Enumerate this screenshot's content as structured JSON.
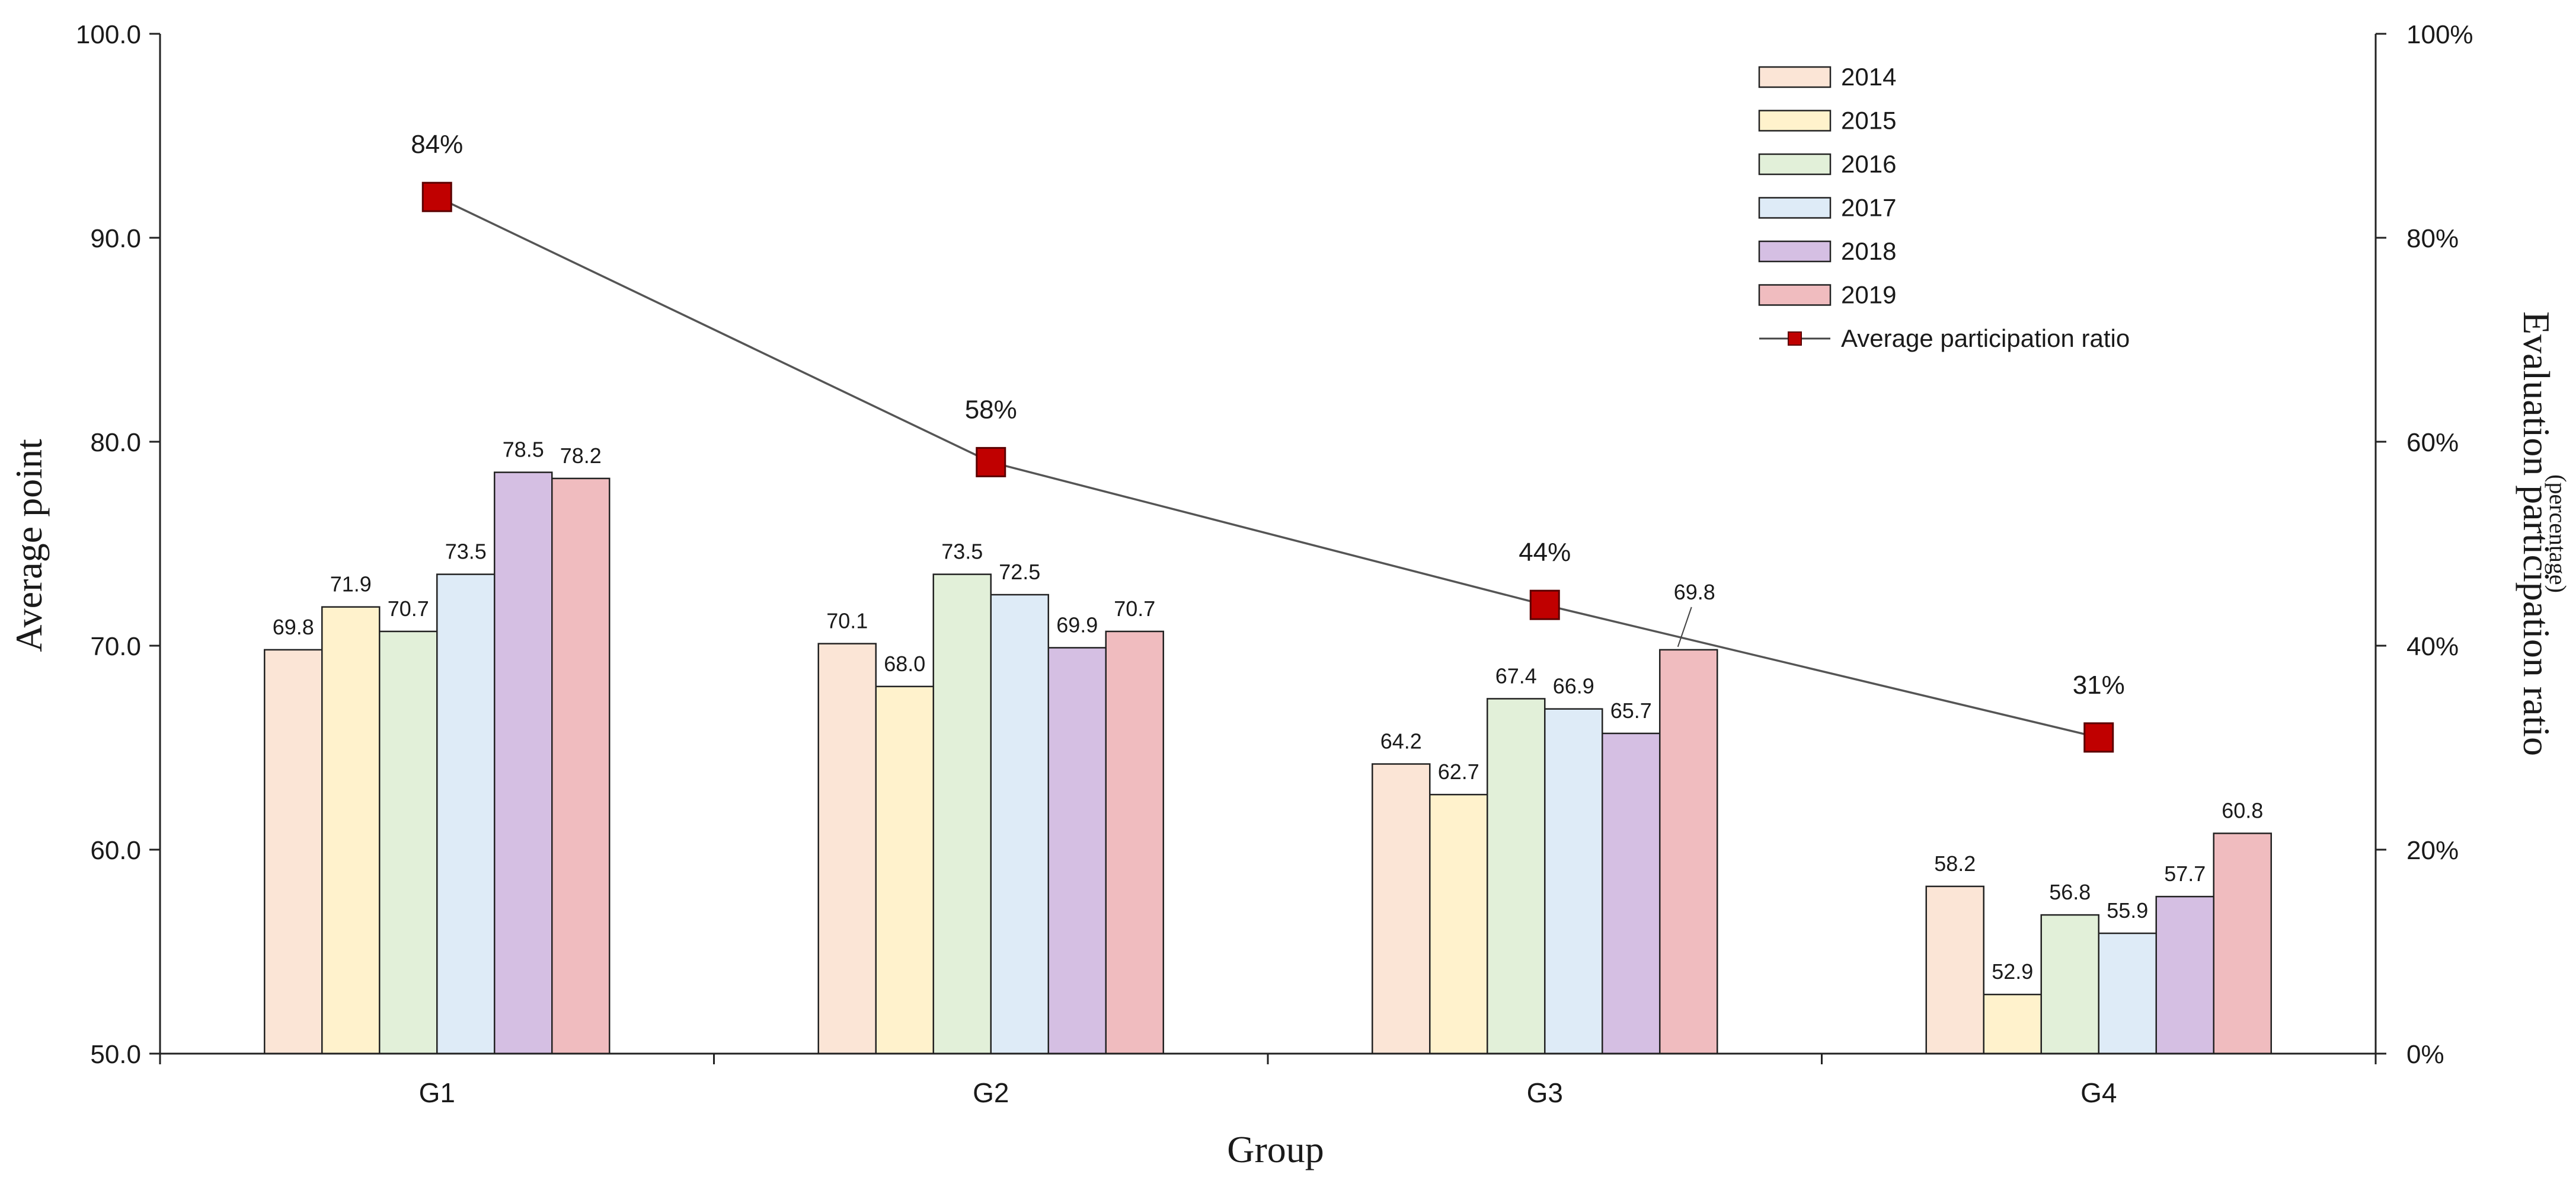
{
  "chart_data": {
    "type": "bar",
    "x_title": "Group",
    "y_left_title": "Average point",
    "y_right_title": "Evaluation participation ratio",
    "y_right_subtitle": "(percentage)",
    "categories": [
      "G1",
      "G2",
      "G3",
      "G4"
    ],
    "y_left": {
      "min": 50,
      "max": 100,
      "ticks": [
        50,
        60,
        70,
        80,
        90,
        100
      ],
      "tick_labels": [
        "50.0",
        "60.0",
        "70.0",
        "80.0",
        "90.0",
        "100.0"
      ]
    },
    "y_right": {
      "min": 0,
      "max": 100,
      "ticks": [
        0,
        20,
        40,
        60,
        80,
        100
      ],
      "tick_labels": [
        "0%",
        "20%",
        "40%",
        "60%",
        "80%",
        "100%"
      ]
    },
    "series": [
      {
        "name": "2014",
        "color": "#FBE5D6",
        "values": [
          69.8,
          70.1,
          64.2,
          58.2
        ],
        "labels": [
          "69.8",
          "70.1",
          "64.2",
          "58.2"
        ]
      },
      {
        "name": "2015",
        "color": "#FFF2CC",
        "values": [
          71.9,
          68.0,
          62.7,
          52.9
        ],
        "labels": [
          "71.9",
          "68.0",
          "62.7",
          "52.9"
        ]
      },
      {
        "name": "2016",
        "color": "#E2F0D9",
        "values": [
          70.7,
          73.5,
          67.4,
          56.8
        ],
        "labels": [
          "70.7",
          "73.5",
          "67.4",
          "56.8"
        ]
      },
      {
        "name": "2017",
        "color": "#DEEBF7",
        "values": [
          73.5,
          72.5,
          66.9,
          55.9
        ],
        "labels": [
          "73.5",
          "72.5",
          "66.9",
          "55.9"
        ]
      },
      {
        "name": "2018",
        "color": "#D5BFE3",
        "values": [
          78.5,
          69.9,
          65.7,
          57.7
        ],
        "labels": [
          "78.5",
          "69.9",
          "65.7",
          "57.7"
        ]
      },
      {
        "name": "2019",
        "color": "#F0BCBF",
        "values": [
          78.2,
          70.7,
          69.8,
          60.8
        ],
        "labels": [
          "78.2",
          "70.7",
          "69.8",
          "60.8"
        ]
      }
    ],
    "line_series": {
      "name": "Average participation ratio",
      "color": "#C00000",
      "axis": "right",
      "values": [
        84,
        58,
        44,
        31
      ],
      "labels": [
        "84%",
        "58%",
        "44%",
        "31%"
      ]
    },
    "legend_position": "top-right",
    "grid": false
  }
}
